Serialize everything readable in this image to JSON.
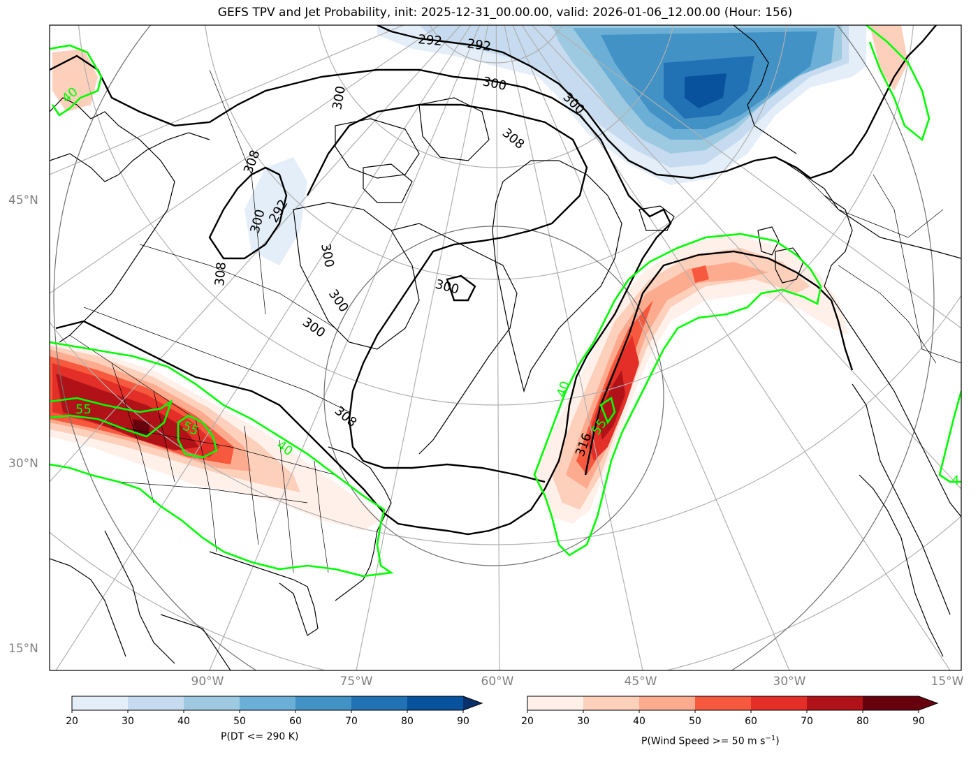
{
  "title": "GEFS TPV and Jet Probability, init: 2025-12-31_00.00.00, valid: 2026-01-06_12.00.00 (Hour: 156)",
  "lat_labels": [
    "45°N",
    "30°N",
    "15°N"
  ],
  "lon_labels": [
    "90°W",
    "75°W",
    "60°W",
    "45°W",
    "30°W",
    "15°W"
  ],
  "contour_labels_black": [
    "292",
    "292",
    "300",
    "300",
    "308",
    "308",
    "308",
    "300",
    "300",
    "300",
    "300",
    "300",
    "300",
    "308",
    "316",
    "292"
  ],
  "contour_labels_green": [
    "40",
    "55",
    "55",
    "40",
    "40",
    "55",
    "4"
  ],
  "colorbar_dt": {
    "label": "P(DT <= 290 K)",
    "ticks": [
      "20",
      "30",
      "40",
      "50",
      "60",
      "70",
      "80",
      "90"
    ],
    "colors": [
      "#e3eef8",
      "#c6dbef",
      "#9ecae1",
      "#6baed6",
      "#4292c6",
      "#2171b5",
      "#08519c",
      "#08306b"
    ]
  },
  "colorbar_jet": {
    "label": "P(Wind Speed >= 50 m s",
    "label_sup": "−1",
    "label_end": ")",
    "ticks": [
      "20",
      "30",
      "40",
      "50",
      "60",
      "70",
      "80",
      "90"
    ],
    "colors": [
      "#fff0ea",
      "#fdd0bc",
      "#fcab8f",
      "#f7593f",
      "#e32f27",
      "#b11218",
      "#67000d",
      "#67000d"
    ]
  }
}
